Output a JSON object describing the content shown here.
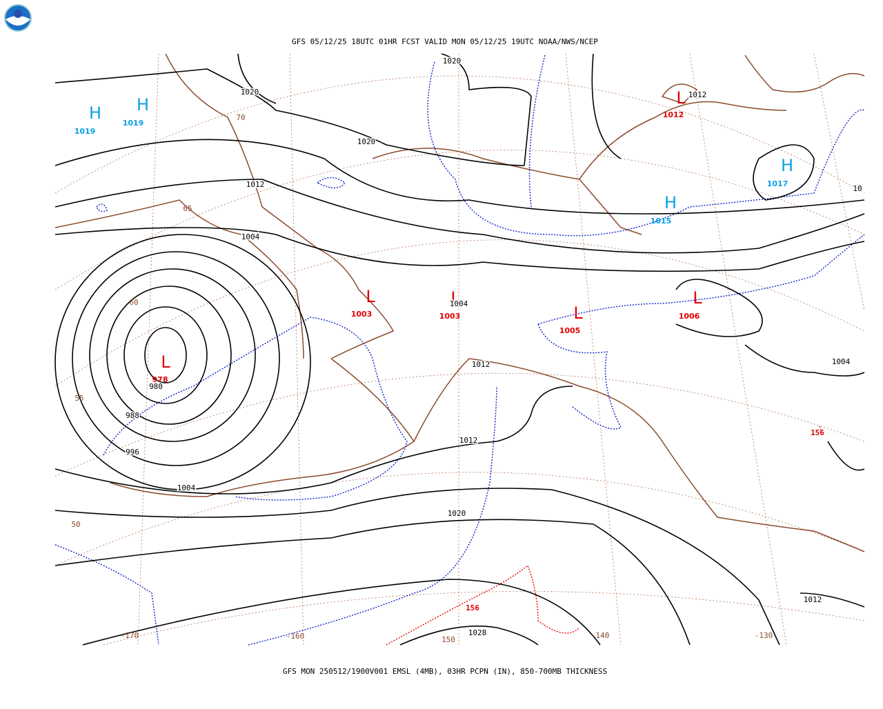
{
  "header": {
    "title": "GFS 05/12/25 18UTC 01HR FCST VALID MON 05/12/25 19UTC NOAA/NWS/NCEP"
  },
  "footer": {
    "caption": "GFS MON 250512/1900V001 EMSL (4MB), 03HR PCPN (IN), 850-700MB THICKNESS"
  },
  "pressure_centers": [
    {
      "symbol": "H",
      "value": "1019"
    },
    {
      "symbol": "H",
      "value": "1019"
    },
    {
      "symbol": "L",
      "value": "1012"
    },
    {
      "symbol": "H",
      "value": "1017"
    },
    {
      "symbol": "H",
      "value": "1015"
    },
    {
      "symbol": "L",
      "value": "1003"
    },
    {
      "symbol": "L",
      "value": "1003"
    },
    {
      "symbol": "L",
      "value": "1005"
    },
    {
      "symbol": "L",
      "value": "1006"
    },
    {
      "symbol": "L",
      "value": "978"
    }
  ],
  "isobar_labels": [
    "1020",
    "1020",
    "1012",
    "1020",
    "1012",
    "10",
    "1004",
    "1004",
    "980",
    "1012",
    "988",
    "996",
    "1012",
    "1004",
    "1020",
    "1028",
    "1004",
    "1012"
  ],
  "graticule_labels": [
    "70",
    "65",
    "60",
    "55",
    "50",
    "-170",
    "-160",
    "150",
    "-140",
    "-130"
  ],
  "thickness_labels": [
    "156",
    "156"
  ]
}
